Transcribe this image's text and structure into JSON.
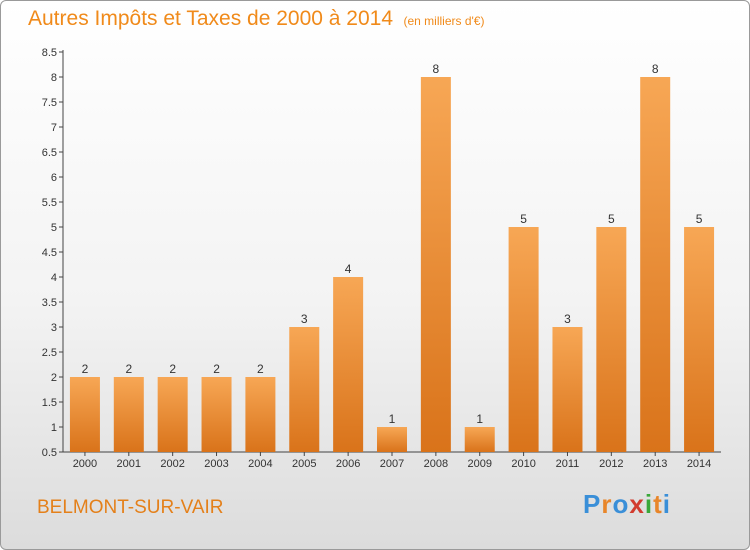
{
  "header": {
    "title": "Autres Impôts et Taxes de 2000 à 2014",
    "unit": "(en milliers d'€)"
  },
  "footer": {
    "commune": "BELMONT-SUR-VAIR",
    "logo": "Proxiti",
    "logo_colors": [
      "#3a8fd8",
      "#e8862a",
      "#3a8fd8",
      "#d23b2e",
      "#3aa83a",
      "#e8862a",
      "#3a8fd8"
    ]
  },
  "chart_data": {
    "type": "bar",
    "title": "Autres Impôts et Taxes de 2000 à 2014",
    "subtitle": "(en milliers d'€)",
    "categories": [
      "2000",
      "2001",
      "2002",
      "2003",
      "2004",
      "2005",
      "2006",
      "2007",
      "2008",
      "2009",
      "2010",
      "2011",
      "2012",
      "2013",
      "2014"
    ],
    "values": [
      2,
      2,
      2,
      2,
      2,
      3,
      4,
      1,
      8,
      1,
      5,
      3,
      5,
      8,
      5
    ],
    "ylim": [
      0.5,
      8.5
    ],
    "yticks": [
      0.5,
      1,
      1.5,
      2,
      2.5,
      3,
      3.5,
      4,
      4.5,
      5,
      5.5,
      6,
      6.5,
      7,
      7.5,
      8,
      8.5
    ],
    "ytick_labels": [
      "0.5",
      "1",
      "1.5",
      "2",
      "2.5",
      "3",
      "3.5",
      "4",
      "4.5",
      "5",
      "5.5",
      "6",
      "6.5",
      "7",
      "7.5",
      "8",
      "8.5"
    ],
    "bar_color": "#f08a1a",
    "grid": false,
    "legend": "none"
  }
}
